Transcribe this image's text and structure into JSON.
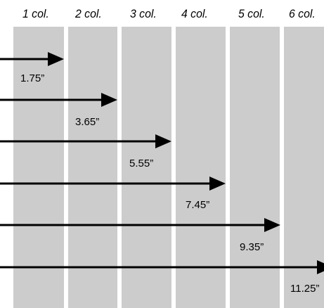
{
  "colors": {
    "column_fill": "#cccccc",
    "arrow": "#000000",
    "background": "#ffffff",
    "text": "#000000"
  },
  "columns": [
    {
      "label": "1 col.",
      "measure": "1.75”"
    },
    {
      "label": "2 col.",
      "measure": "3.65”"
    },
    {
      "label": "3 col.",
      "measure": "5.55”"
    },
    {
      "label": "4 col.",
      "measure": "7.45”"
    },
    {
      "label": "5 col.",
      "measure": "9.35”"
    },
    {
      "label": "6 col.",
      "measure": "11.25”"
    }
  ]
}
